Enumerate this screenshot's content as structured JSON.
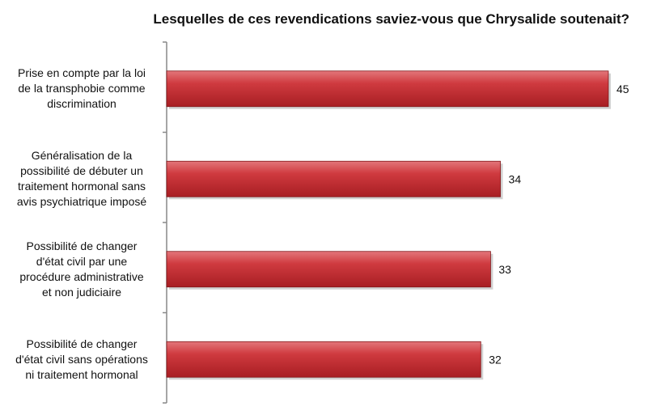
{
  "chart_data": {
    "type": "bar",
    "orientation": "horizontal",
    "title": "Lesquelles de ces revendications saviez-vous que Chrysalide soutenait?",
    "categories": [
      "Prise en compte par la loi de la transphobie comme discrimination",
      "Généralisation de la possibilité de débuter un traitement hormonal sans avis psychiatrique imposé",
      "Possibilité de changer d'état civil par une procédure administrative et non judiciaire",
      "Possibilité de changer d'état civil sans opérations ni traitement hormonal"
    ],
    "category_lines": [
      [
        "Prise en compte par la loi",
        "de la transphobie comme",
        "discrimination"
      ],
      [
        "Généralisation de la",
        "possibilité de débuter un",
        "traitement hormonal sans",
        "avis psychiatrique imposé"
      ],
      [
        "Possibilité de changer",
        "d'état civil par une",
        "procédure administrative",
        "et non judiciaire"
      ],
      [
        "Possibilité de changer",
        "d'état civil sans opérations",
        "ni traitement hormonal"
      ]
    ],
    "values": [
      45,
      34,
      33,
      32
    ],
    "data_labels": [
      "45",
      "34",
      "33",
      "32"
    ],
    "bar_color": "#c0282d",
    "xlim": [
      0,
      45
    ],
    "grid": false,
    "legend": "none"
  }
}
